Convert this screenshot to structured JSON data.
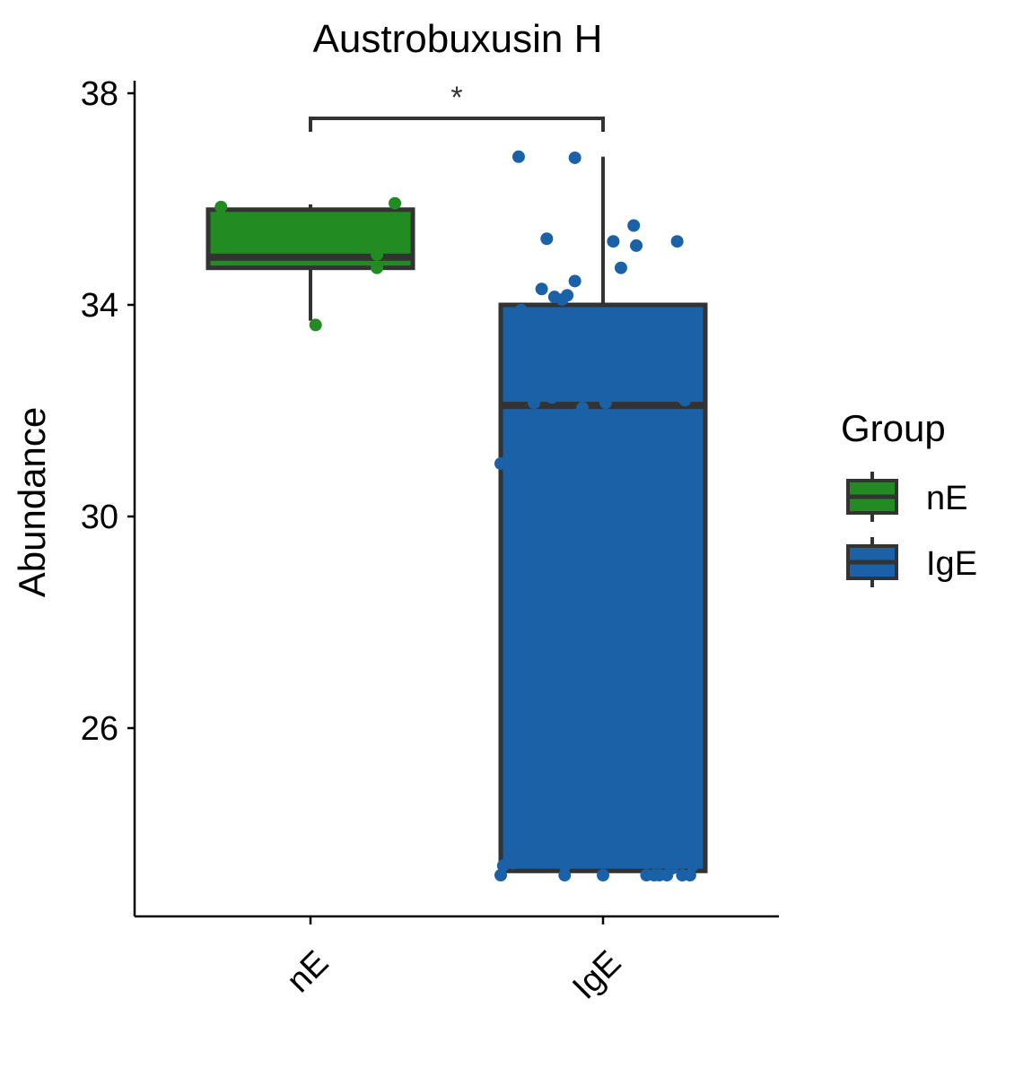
{
  "chart_data": {
    "type": "box",
    "title": "Austrobuxusin H",
    "xlabel": "",
    "ylabel": "Abundance",
    "ylim": [
      22.5,
      38.1
    ],
    "yticks": [
      26,
      30,
      34,
      38
    ],
    "categories": [
      "nE",
      "IgE"
    ],
    "colors": {
      "nE": "#228B22",
      "IgE": "#1A61A8",
      "outline": "#333333"
    },
    "boxes": [
      {
        "group": "nE",
        "min": 33.7,
        "q1": 34.7,
        "median": 34.9,
        "q3": 35.8,
        "max": 35.9,
        "points": [
          {
            "x": -0.35,
            "y": 35.85
          },
          {
            "x": 0.33,
            "y": 35.92
          },
          {
            "x": 0.26,
            "y": 34.95
          },
          {
            "x": 0.26,
            "y": 34.7
          },
          {
            "x": 0.02,
            "y": 33.62
          }
        ]
      },
      {
        "group": "IgE",
        "min": 23.2,
        "q1": 23.3,
        "median": 32.1,
        "q3": 34.0,
        "max": 36.8,
        "points": [
          {
            "x": -0.33,
            "y": 36.8
          },
          {
            "x": -0.11,
            "y": 36.78
          },
          {
            "x": -0.22,
            "y": 35.25
          },
          {
            "x": 0.12,
            "y": 35.5
          },
          {
            "x": 0.04,
            "y": 35.2
          },
          {
            "x": 0.13,
            "y": 35.12
          },
          {
            "x": 0.29,
            "y": 35.2
          },
          {
            "x": 0.07,
            "y": 34.7
          },
          {
            "x": -0.11,
            "y": 34.45
          },
          {
            "x": -0.24,
            "y": 34.3
          },
          {
            "x": -0.19,
            "y": 34.15
          },
          {
            "x": -0.16,
            "y": 34.1
          },
          {
            "x": -0.14,
            "y": 34.18
          },
          {
            "x": -0.32,
            "y": 33.9
          },
          {
            "x": 0.34,
            "y": 33.45
          },
          {
            "x": -0.35,
            "y": 32.3
          },
          {
            "x": -0.2,
            "y": 32.25
          },
          {
            "x": -0.27,
            "y": 32.15
          },
          {
            "x": 0.01,
            "y": 32.15
          },
          {
            "x": 0.32,
            "y": 32.2
          },
          {
            "x": -0.08,
            "y": 32.05
          },
          {
            "x": -0.4,
            "y": 31.0
          },
          {
            "x": -0.39,
            "y": 23.4
          },
          {
            "x": -0.35,
            "y": 23.45
          },
          {
            "x": -0.15,
            "y": 23.4
          },
          {
            "x": 0.27,
            "y": 23.35
          },
          {
            "x": 0.35,
            "y": 23.4
          },
          {
            "x": -0.4,
            "y": 23.22
          },
          {
            "x": -0.15,
            "y": 23.22
          },
          {
            "x": 0.0,
            "y": 23.22
          },
          {
            "x": 0.17,
            "y": 23.22
          },
          {
            "x": 0.2,
            "y": 23.22
          },
          {
            "x": 0.22,
            "y": 23.22
          },
          {
            "x": 0.25,
            "y": 23.22
          },
          {
            "x": 0.31,
            "y": 23.22
          },
          {
            "x": 0.34,
            "y": 23.22
          }
        ]
      }
    ],
    "significance": {
      "from": "nE",
      "to": "IgE",
      "label": "*"
    },
    "legend": {
      "title": "Group",
      "position": "right",
      "entries": [
        "nE",
        "IgE"
      ]
    },
    "grid": false
  }
}
